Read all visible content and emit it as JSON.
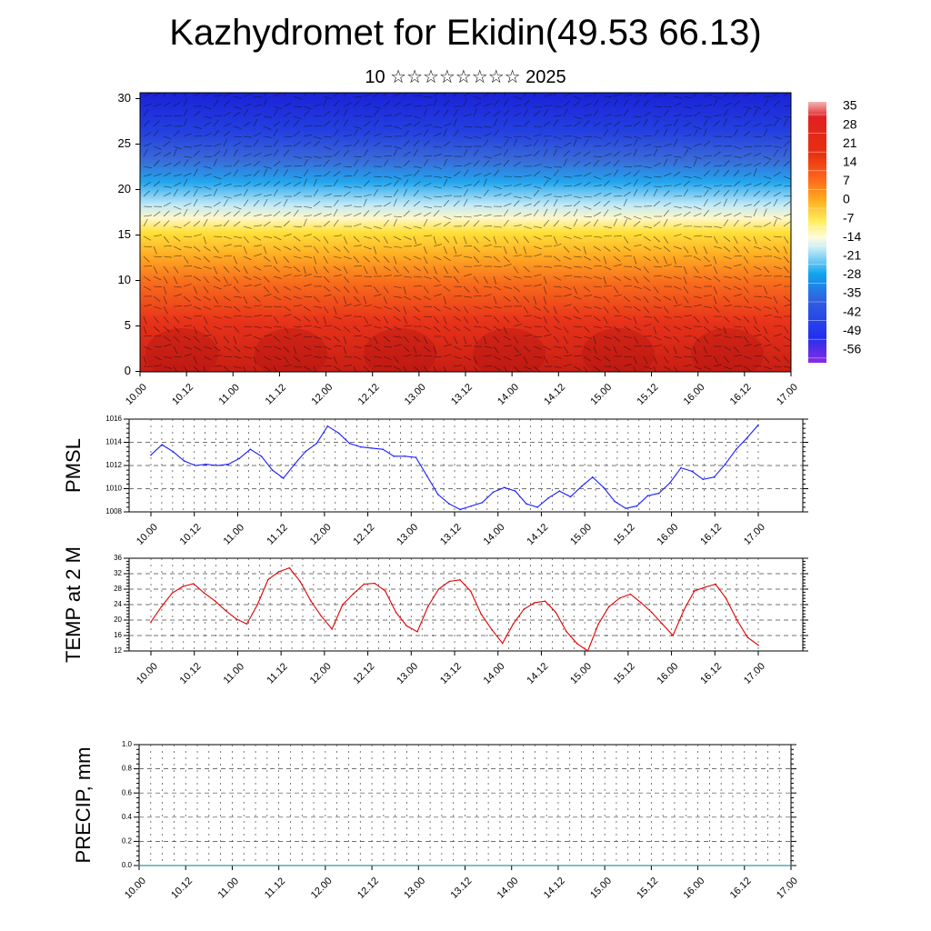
{
  "title": "Kazhydromet for Ekidin(49.53 66.13)",
  "subtitle": "10 ☆☆☆☆☆☆☆☆ 2025",
  "time_ticks": [
    "10.00",
    "10.12",
    "11.00",
    "11.12",
    "12.00",
    "12.12",
    "13.00",
    "13.12",
    "14.00",
    "14.12",
    "15.00",
    "15.12",
    "16.00",
    "16.12",
    "17.00"
  ],
  "colors": {
    "pmsl_line": "#1a1aff",
    "temp_line": "#e00000",
    "precip_line": "#008080"
  },
  "chart_data": [
    {
      "id": "cross-section",
      "type": "heatmap",
      "title": "",
      "ylabel": "",
      "ylim": [
        0,
        30
      ],
      "yticks": [
        0,
        5,
        10,
        15,
        20,
        25,
        30
      ],
      "colorbar": {
        "labels": [
          "35",
          "28",
          "21",
          "14",
          "7",
          "0",
          "-7",
          "-14",
          "-21",
          "-28",
          "-35",
          "-42",
          "-49",
          "-56"
        ]
      }
    },
    {
      "id": "pmsl",
      "type": "line",
      "ylabel": "PMSL",
      "ylim": [
        1008,
        1016
      ],
      "yticks": [
        "1016",
        "1014",
        "1012",
        "1010",
        "1008"
      ],
      "series": [
        {
          "values": [
            1012.9,
            1013.8,
            1013.2,
            1012.4,
            1012.0,
            1012.1,
            1012.0,
            1012.1,
            1012.6,
            1013.4,
            1012.8,
            1011.6,
            1010.9,
            1012.1,
            1013.2,
            1013.9,
            1015.4,
            1014.8,
            1013.9,
            1013.6,
            1013.5,
            1013.4,
            1012.8,
            1012.8,
            1012.7,
            1011.1,
            1009.5,
            1008.7,
            1008.2,
            1008.5,
            1008.8,
            1009.7,
            1010.1,
            1009.8,
            1008.7,
            1008.4,
            1009.2,
            1009.8,
            1009.3,
            1010.2,
            1011.0,
            1010.1,
            1008.9,
            1008.3,
            1008.5,
            1009.4,
            1009.6,
            1010.5,
            1011.8,
            1011.5,
            1010.8,
            1011.0,
            1012.1,
            1013.4,
            1014.4,
            1015.5
          ]
        }
      ]
    },
    {
      "id": "temp",
      "type": "line",
      "ylabel": "TEMP at 2 M",
      "ylim": [
        12,
        36
      ],
      "yticks": [
        "36",
        "32",
        "28",
        "24",
        "20",
        "16",
        "12"
      ],
      "series": [
        {
          "values": [
            19.5,
            23.5,
            27.0,
            28.7,
            29.4,
            27.0,
            25.0,
            22.5,
            20.3,
            19.0,
            24.0,
            30.5,
            32.5,
            33.5,
            30.0,
            25.0,
            21.0,
            17.7,
            24.0,
            26.8,
            29.3,
            29.5,
            27.5,
            22.0,
            18.5,
            17.0,
            23.5,
            28.0,
            30.0,
            30.4,
            27.5,
            21.5,
            17.5,
            14.0,
            19.0,
            22.8,
            24.5,
            24.9,
            22.0,
            17.0,
            13.9,
            12.0,
            19.0,
            23.5,
            25.7,
            26.7,
            24.5,
            22.0,
            19.0,
            16.0,
            22.5,
            27.5,
            28.5,
            29.3,
            25.5,
            20.0,
            15.5,
            13.5
          ]
        }
      ]
    },
    {
      "id": "precip",
      "type": "line",
      "ylabel": "PRECIP, mm",
      "ylim": [
        0,
        1.0
      ],
      "yticks": [
        "1.0",
        "0.8",
        "0.6",
        "0.4",
        "0.2",
        "0.0"
      ],
      "series": [
        {
          "values": [
            0,
            0,
            0,
            0,
            0,
            0,
            0,
            0,
            0,
            0,
            0,
            0,
            0,
            0,
            0
          ]
        }
      ]
    }
  ]
}
